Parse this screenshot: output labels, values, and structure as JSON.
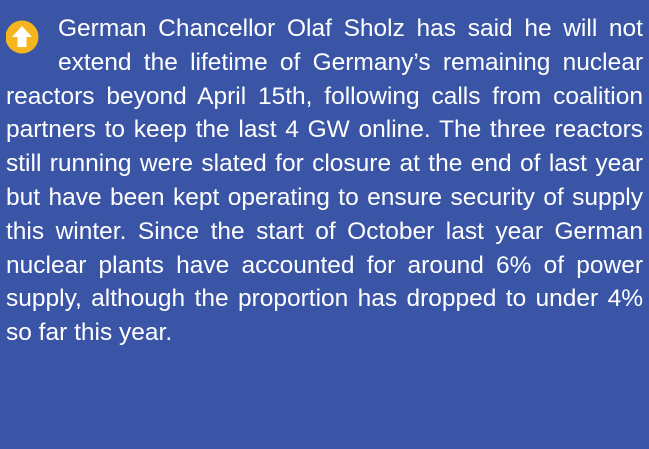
{
  "text": "German Chancellor Olaf Sholz has said he will not extend the lifetime of Germany’s remaining nuclear reactors beyond April 15th, following calls from coalition partners to keep the last 4 GW online. The three reactors still running were slated for closure at the end of last year but have been kept operating to ensure security of supply this winter. Since the start of October last year German nuclear plants have accounted for around 6% of power supply, although the proportion has dropped to under 4% so far this year."
}
